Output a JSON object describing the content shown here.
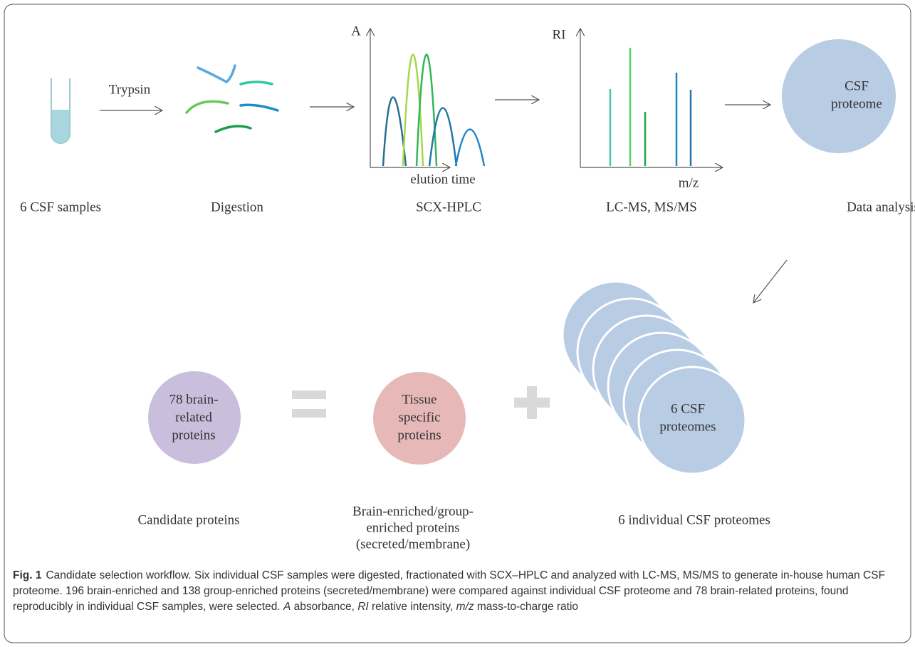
{
  "steps": {
    "sample": "6 CSF samples",
    "digestion": "Digestion",
    "fractionation": "SCX-HPLC",
    "ms": "LC-MS, MS/MS",
    "analysis": "Data analysis"
  },
  "enzyme": "Trypsin",
  "chromatogram": {
    "y_axis": "A",
    "x_axis": "elution time"
  },
  "spectrum": {
    "y_axis": "RI",
    "x_axis": "m/z"
  },
  "proteome_circle": [
    "CSF",
    "proteome"
  ],
  "candidates_circle": [
    "78 brain-",
    "related",
    "proteins"
  ],
  "tissue_circle": [
    "Tissue",
    "specific",
    "proteins"
  ],
  "individual_circle": [
    "6 CSF",
    "proteomes"
  ],
  "bottom_labels": {
    "candidates": "Candidate proteins",
    "tissue": [
      "Brain-enriched/group-",
      "enriched proteins",
      "(secreted/membrane)"
    ],
    "individual": "6 individual CSF proteomes"
  },
  "caption": {
    "label": "Fig. 1",
    "parts": [
      "Candidate selection workflow. Six individual CSF samples were digested, fractionated with SCX–HPLC and analyzed with LC-MS, MS/MS to generate in-house human CSF proteome. 196 brain-enriched and 138 group-enriched proteins (secreted/membrane) were compared against individual CSF proteome and 78 brain-related proteins, found reproducibly in individual CSF samples, were selected. ",
      "A",
      " absorbance, ",
      "RI",
      " relative intensity, ",
      "m/z",
      " mass-to-charge ratio"
    ]
  }
}
